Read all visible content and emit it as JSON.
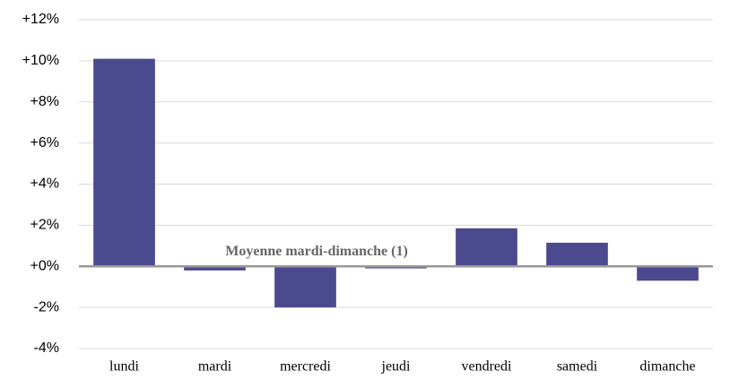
{
  "chart_data": {
    "type": "bar",
    "categories": [
      "lundi",
      "mardi",
      "mercredi",
      "jeudi",
      "vendredi",
      "samedi",
      "dimanche"
    ],
    "values": [
      10.1,
      -0.2,
      -2.0,
      -0.1,
      1.85,
      1.15,
      -0.7
    ],
    "color": "#4b4a8f",
    "ylim": [
      -4,
      12
    ],
    "yticks": [
      {
        "value": -4,
        "label": "-4%"
      },
      {
        "value": -2,
        "label": "-2%"
      },
      {
        "value": 0,
        "label": "+0%"
      },
      {
        "value": 2,
        "label": "+2%"
      },
      {
        "value": 4,
        "label": "+4%"
      },
      {
        "value": 6,
        "label": "+6%"
      },
      {
        "value": 8,
        "label": "+8%"
      },
      {
        "value": 10,
        "label": "+10%"
      },
      {
        "value": 12,
        "label": "+12%"
      }
    ],
    "grid": true,
    "annotation": "Moyenne mardi-dimanche (1)"
  }
}
